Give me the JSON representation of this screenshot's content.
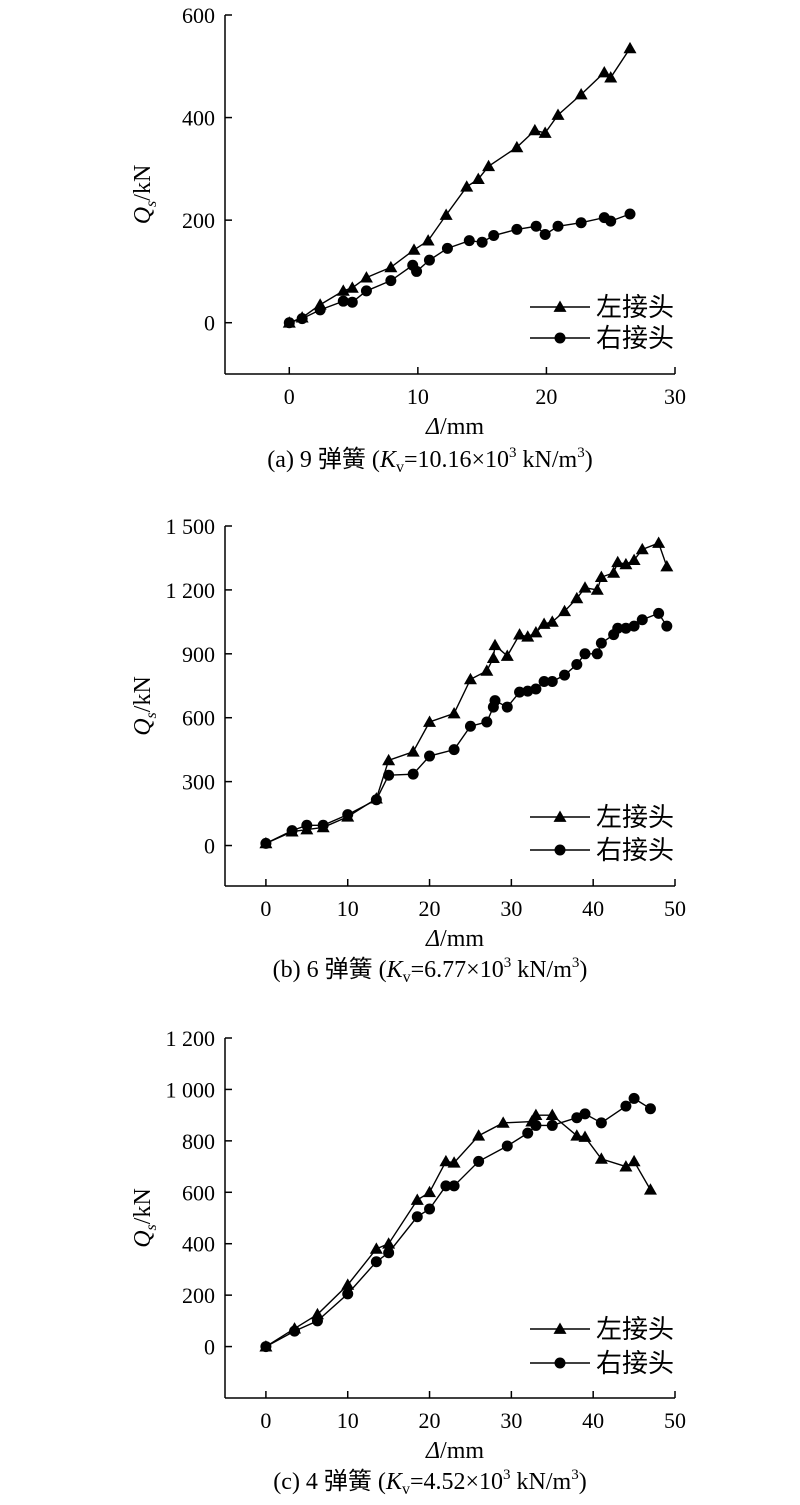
{
  "chart_data": [
    {
      "type": "line",
      "caption": {
        "prefix": "(a) 9 弹簧 (",
        "k": "K",
        "ksub": "v",
        "mid": "=10.16×10",
        "sup": "3",
        "unit": " kN/m",
        "unitsup": "3",
        "end": ")"
      },
      "xlabel": {
        "sym": "Δ",
        "unit": "/mm"
      },
      "ylabel": {
        "sym": "Q",
        "sub": "s",
        "unit": "/kN"
      },
      "xlim": [
        -5,
        30
      ],
      "ylim": [
        -100,
        600
      ],
      "xticks": [
        "0",
        "10",
        "20",
        "30"
      ],
      "yticks": [
        "0",
        "200",
        "400",
        "600"
      ],
      "xtickvals": [
        0,
        10,
        20,
        30
      ],
      "ytickvals": [
        0,
        200,
        400,
        600
      ],
      "legend_position": "bottom-right",
      "series": [
        {
          "name": "左接头",
          "marker": "triangle",
          "x": [
            0,
            1,
            2.4,
            4.2,
            4.9,
            6,
            7.9,
            9.7,
            10.8,
            12.2,
            13.8,
            14.7,
            15.5,
            17.7,
            19.1,
            19.9,
            20.9,
            22.7,
            24.5,
            25,
            26.5
          ],
          "y": [
            0,
            10,
            35,
            62,
            68,
            88,
            108,
            142,
            160,
            210,
            265,
            280,
            305,
            342,
            375,
            370,
            405,
            445,
            488,
            478,
            535
          ]
        },
        {
          "name": "右接头",
          "marker": "circle",
          "x": [
            0,
            1,
            2.4,
            4.2,
            4.9,
            6,
            7.9,
            9.6,
            9.9,
            10.9,
            12.3,
            14,
            15,
            15.9,
            17.7,
            19.2,
            19.9,
            20.9,
            22.7,
            24.5,
            25,
            26.5
          ],
          "y": [
            0,
            8,
            25,
            42,
            40,
            62,
            82,
            112,
            100,
            122,
            145,
            160,
            157,
            170,
            182,
            188,
            172,
            188,
            195,
            205,
            198,
            212
          ]
        }
      ]
    },
    {
      "type": "line",
      "caption": {
        "prefix": "(b) 6 弹簧 (",
        "k": "K",
        "ksub": "v",
        "mid": "=6.77×10",
        "sup": "3",
        "unit": " kN/m",
        "unitsup": "3",
        "end": ")"
      },
      "xlabel": {
        "sym": "Δ",
        "unit": "/mm"
      },
      "ylabel": {
        "sym": "Q",
        "sub": "s",
        "unit": "/kN"
      },
      "xlim": [
        -5,
        50
      ],
      "ylim": [
        -190,
        1500
      ],
      "xticks": [
        "0",
        "10",
        "20",
        "30",
        "40",
        "50"
      ],
      "yticks": [
        "0",
        "300",
        "600",
        "900",
        "1 200",
        "1 500"
      ],
      "xtickvals": [
        0,
        10,
        20,
        30,
        40,
        50
      ],
      "ytickvals": [
        0,
        300,
        600,
        900,
        1200,
        1500
      ],
      "legend_position": "bottom-right",
      "series": [
        {
          "name": "左接头",
          "marker": "triangle",
          "x": [
            0,
            3.2,
            5,
            7,
            10,
            13.5,
            15,
            18,
            20,
            23,
            25,
            27,
            27.8,
            28,
            29.5,
            31,
            32,
            33,
            34,
            35,
            36.5,
            38,
            39,
            40.5,
            41,
            42.5,
            43,
            44,
            45,
            46,
            48,
            49
          ],
          "y": [
            10,
            65,
            75,
            85,
            135,
            220,
            400,
            440,
            580,
            620,
            780,
            820,
            880,
            940,
            890,
            990,
            980,
            1000,
            1040,
            1050,
            1100,
            1160,
            1210,
            1200,
            1260,
            1280,
            1330,
            1320,
            1340,
            1390,
            1420,
            1310
          ]
        },
        {
          "name": "右接头",
          "marker": "circle",
          "x": [
            0,
            3.2,
            5,
            7,
            10,
            13.5,
            15,
            18,
            20,
            23,
            25,
            27,
            27.8,
            28,
            29.5,
            31,
            32,
            33,
            34,
            35,
            36.5,
            38,
            39,
            40.5,
            41,
            42.5,
            43,
            44,
            45,
            46,
            48,
            49
          ],
          "y": [
            10,
            70,
            95,
            95,
            145,
            215,
            330,
            335,
            420,
            450,
            560,
            580,
            650,
            680,
            650,
            720,
            725,
            735,
            770,
            770,
            800,
            850,
            900,
            900,
            950,
            990,
            1020,
            1020,
            1030,
            1060,
            1090,
            1030
          ]
        }
      ]
    },
    {
      "type": "line",
      "caption": {
        "prefix": "(c) 4 弹簧 (",
        "k": "K",
        "ksub": "v",
        "mid": "=4.52×10",
        "sup": "3",
        "unit": " kN/m",
        "unitsup": "3",
        "end": ")"
      },
      "xlabel": {
        "sym": "Δ",
        "unit": "/mm"
      },
      "ylabel": {
        "sym": "Q",
        "sub": "s",
        "unit": "/kN"
      },
      "xlim": [
        -5,
        50
      ],
      "ylim": [
        -200,
        1200
      ],
      "xticks": [
        "0",
        "10",
        "20",
        "30",
        "40",
        "50"
      ],
      "yticks": [
        "0",
        "200",
        "400",
        "600",
        "800",
        "1 000",
        "1 200"
      ],
      "xtickvals": [
        0,
        10,
        20,
        30,
        40,
        50
      ],
      "ytickvals": [
        0,
        200,
        400,
        600,
        800,
        1000,
        1200
      ],
      "legend_position": "bottom-right",
      "series": [
        {
          "name": "左接头",
          "marker": "triangle",
          "x": [
            0,
            3.5,
            6.3,
            10,
            13.5,
            15,
            18.5,
            20,
            22,
            23,
            26,
            29,
            32.5,
            33,
            35,
            38,
            39,
            41,
            44,
            45,
            47
          ],
          "y": [
            0,
            70,
            125,
            240,
            380,
            400,
            570,
            600,
            720,
            715,
            820,
            870,
            875,
            900,
            900,
            820,
            815,
            730,
            700,
            720,
            610
          ]
        },
        {
          "name": "右接头",
          "marker": "circle",
          "x": [
            0,
            3.5,
            6.3,
            10,
            13.5,
            15,
            18.5,
            20,
            22,
            23,
            26,
            29.5,
            32,
            33,
            35,
            38,
            39,
            41,
            44,
            45,
            47
          ],
          "y": [
            0,
            60,
            100,
            205,
            330,
            365,
            505,
            535,
            625,
            625,
            720,
            780,
            830,
            860,
            860,
            890,
            905,
            870,
            935,
            965,
            925
          ]
        }
      ]
    }
  ]
}
